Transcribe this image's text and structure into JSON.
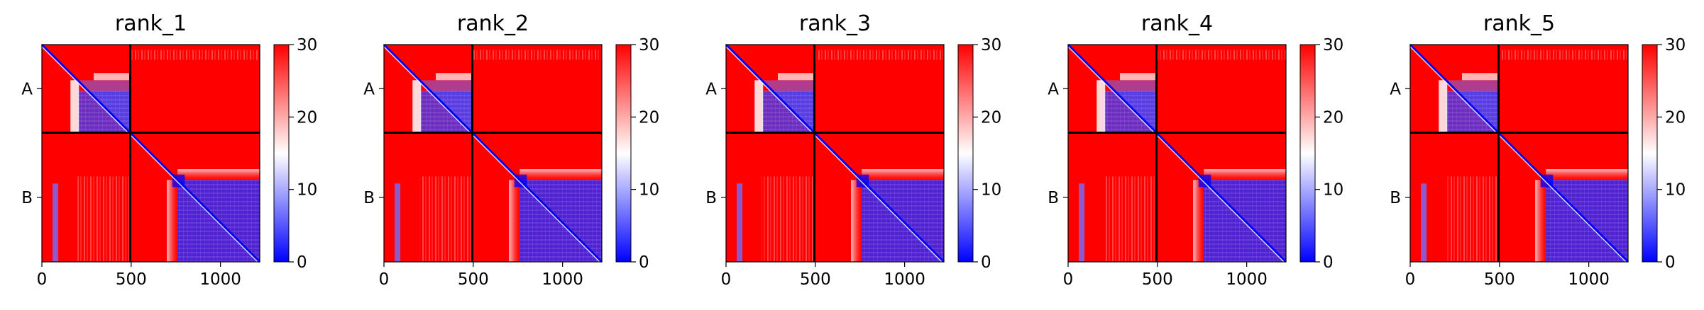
{
  "chart_data": [
    {
      "type": "heatmap",
      "title": "rank_1",
      "x_ticks": [
        0,
        500,
        1000
      ],
      "x_range": [
        0,
        1220
      ],
      "chain_labels": [
        "A",
        "B"
      ],
      "chain_boundary": 495,
      "colorbar": {
        "ticks": [
          0,
          10,
          20,
          30
        ],
        "range": [
          0,
          30
        ],
        "colors": [
          "#0000ff",
          "#ffffff",
          "#ff0000"
        ]
      }
    },
    {
      "type": "heatmap",
      "title": "rank_2",
      "x_ticks": [
        0,
        500,
        1000
      ],
      "x_range": [
        0,
        1220
      ],
      "chain_labels": [
        "A",
        "B"
      ],
      "chain_boundary": 495,
      "colorbar": {
        "ticks": [
          0,
          10,
          20,
          30
        ],
        "range": [
          0,
          30
        ],
        "colors": [
          "#0000ff",
          "#ffffff",
          "#ff0000"
        ]
      }
    },
    {
      "type": "heatmap",
      "title": "rank_3",
      "x_ticks": [
        0,
        500,
        1000
      ],
      "x_range": [
        0,
        1220
      ],
      "chain_labels": [
        "A",
        "B"
      ],
      "chain_boundary": 495,
      "colorbar": {
        "ticks": [
          0,
          10,
          20,
          30
        ],
        "range": [
          0,
          30
        ],
        "colors": [
          "#0000ff",
          "#ffffff",
          "#ff0000"
        ]
      }
    },
    {
      "type": "heatmap",
      "title": "rank_4",
      "x_ticks": [
        0,
        500,
        1000
      ],
      "x_range": [
        0,
        1220
      ],
      "chain_labels": [
        "A",
        "B"
      ],
      "chain_boundary": 495,
      "colorbar": {
        "ticks": [
          0,
          10,
          20,
          30
        ],
        "range": [
          0,
          30
        ],
        "colors": [
          "#0000ff",
          "#ffffff",
          "#ff0000"
        ]
      }
    },
    {
      "type": "heatmap",
      "title": "rank_5",
      "x_ticks": [
        0,
        500,
        1000
      ],
      "x_range": [
        0,
        1220
      ],
      "chain_labels": [
        "A",
        "B"
      ],
      "chain_boundary": 495,
      "colorbar": {
        "ticks": [
          0,
          10,
          20,
          30
        ],
        "range": [
          0,
          30
        ],
        "colors": [
          "#0000ff",
          "#ffffff",
          "#ff0000"
        ]
      }
    }
  ]
}
